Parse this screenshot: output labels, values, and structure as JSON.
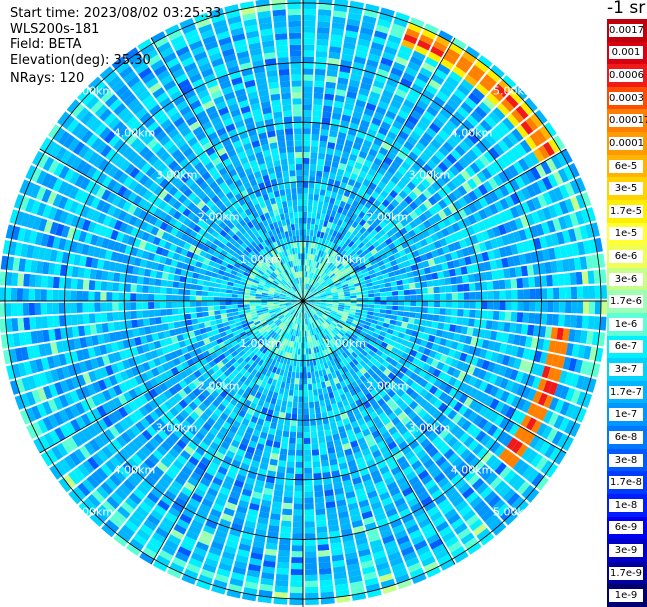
{
  "header": {
    "start_time": "Start time: 2023/08/02 03:25:33",
    "instrument": "WLS200s-181",
    "field": "Field: BETA",
    "elevation": "Elevation(deg): 35.30",
    "nrays": "NRays: 120"
  },
  "chart_data": {
    "type": "heatmap",
    "projection": "polar-ppi",
    "n_rays": 120,
    "elevation_deg": 35.3,
    "field": "BETA",
    "range_ring_labels": [
      "1.00km",
      "2.00km",
      "3.00km",
      "4.00km",
      "5.00km"
    ],
    "range_rings_km": [
      1,
      2,
      3,
      4,
      5
    ],
    "max_range_km": 5.1,
    "spokes_every_deg": 30,
    "colorbar": {
      "unit_label": "-1 sr",
      "labels": [
        "0.0017",
        "0.001",
        "0.0006",
        "0.0003",
        "0.00017",
        "0.0001",
        "6e-5",
        "3e-5",
        "1.7e-5",
        "1e-5",
        "6e-6",
        "3e-6",
        "1.7e-6",
        "1e-6",
        "6e-7",
        "3e-7",
        "1.7e-7",
        "1e-7",
        "6e-8",
        "3e-8",
        "1.7e-8",
        "1e-8",
        "6e-9",
        "3e-9",
        "1.7e-9",
        "1e-9"
      ],
      "colors": [
        "#c0000a",
        "#d90010",
        "#f01a1a",
        "#ff4d00",
        "#ff7f00",
        "#ff9a00",
        "#ffb400",
        "#ffd200",
        "#ffee00",
        "#ffff33",
        "#f0ff55",
        "#c8ff88",
        "#9cffb4",
        "#5cffd6",
        "#00f0ff",
        "#00d2ff",
        "#00b4ff",
        "#0096ff",
        "#0078ff",
        "#005aff",
        "#003cff",
        "#001eff",
        "#0000f0",
        "#0000c8",
        "#00009c",
        "#000070"
      ]
    },
    "features": [
      {
        "name": "NE aerosol layer arc",
        "range_km": [
          4.6,
          5.0
        ],
        "azimuth_deg": [
          20,
          60
        ],
        "value": "3e-5 to 1e-4"
      },
      {
        "name": "E-SE aerosol layer arc",
        "range_km": [
          4.2,
          4.5
        ],
        "azimuth_deg": [
          95,
          128
        ],
        "value": "3e-5 to 1e-4"
      },
      {
        "name": "near field",
        "range_km": [
          0,
          1.0
        ],
        "value": "1e-7 to 1e-6"
      },
      {
        "name": "background",
        "range_km": [
          1.0,
          5.1
        ],
        "value": "3e-8 to 6e-7"
      }
    ]
  }
}
